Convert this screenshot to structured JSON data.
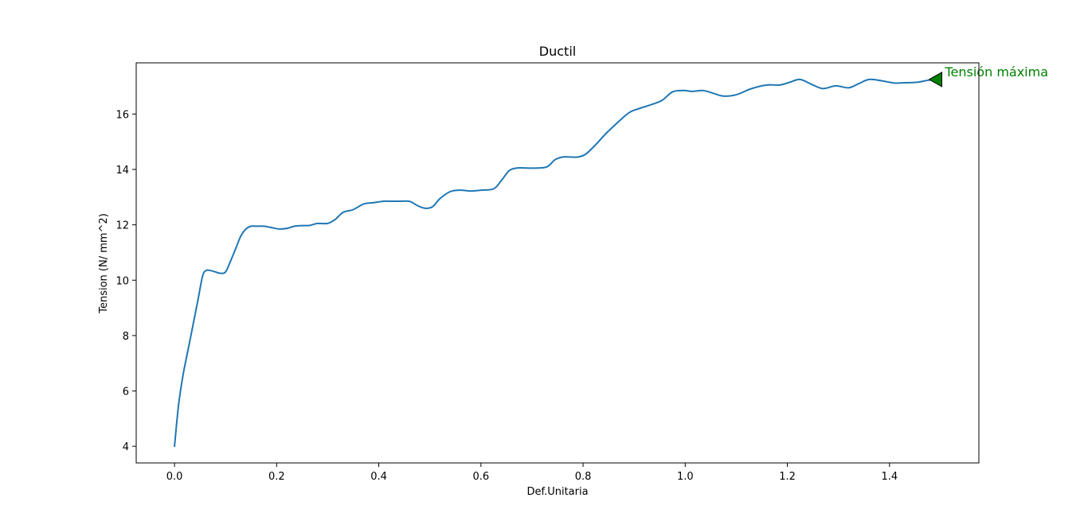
{
  "chart_data": {
    "type": "line",
    "title": "Ductil",
    "xlabel": "Def.Unitaria",
    "ylabel": "Tension (N/ mm^2)",
    "xlim": [
      -0.075,
      1.575
    ],
    "ylim": [
      3.4,
      17.85
    ],
    "xticks": [
      0.0,
      0.2,
      0.4,
      0.6,
      0.8,
      1.0,
      1.2,
      1.4
    ],
    "xtick_labels": [
      "0.0",
      "0.2",
      "0.4",
      "0.6",
      "0.8",
      "1.0",
      "1.2",
      "1.4"
    ],
    "yticks": [
      4,
      6,
      8,
      10,
      12,
      14,
      16
    ],
    "ytick_labels": [
      "4",
      "6",
      "8",
      "10",
      "12",
      "14",
      "16"
    ],
    "grid": false,
    "series": [
      {
        "color": "#1f77b4",
        "x": [
          0.0,
          0.008,
          0.017,
          0.03,
          0.045,
          0.055,
          0.062,
          0.07,
          0.08,
          0.09,
          0.1,
          0.11,
          0.12,
          0.13,
          0.14,
          0.15,
          0.16,
          0.175,
          0.19,
          0.205,
          0.22,
          0.235,
          0.25,
          0.265,
          0.28,
          0.3,
          0.315,
          0.33,
          0.35,
          0.37,
          0.39,
          0.41,
          0.425,
          0.44,
          0.46,
          0.475,
          0.49,
          0.505,
          0.52,
          0.54,
          0.56,
          0.58,
          0.6,
          0.625,
          0.64,
          0.655,
          0.67,
          0.69,
          0.71,
          0.73,
          0.745,
          0.76,
          0.775,
          0.79,
          0.805,
          0.825,
          0.845,
          0.865,
          0.89,
          0.91,
          0.935,
          0.955,
          0.975,
          0.995,
          1.015,
          1.035,
          1.055,
          1.075,
          1.1,
          1.13,
          1.16,
          1.185,
          1.205,
          1.225,
          1.25,
          1.27,
          1.295,
          1.32,
          1.34,
          1.36,
          1.385,
          1.41,
          1.43,
          1.455,
          1.475,
          1.49
        ],
        "y": [
          4.0,
          5.5,
          6.6,
          7.8,
          9.2,
          10.15,
          10.35,
          10.35,
          10.3,
          10.25,
          10.3,
          10.7,
          11.15,
          11.6,
          11.85,
          11.95,
          11.95,
          11.95,
          11.9,
          11.85,
          11.87,
          11.95,
          11.97,
          11.98,
          12.05,
          12.05,
          12.2,
          12.45,
          12.55,
          12.75,
          12.8,
          12.85,
          12.85,
          12.85,
          12.85,
          12.7,
          12.6,
          12.65,
          12.95,
          13.2,
          13.25,
          13.22,
          13.25,
          13.3,
          13.6,
          13.95,
          14.05,
          14.05,
          14.05,
          14.1,
          14.35,
          14.45,
          14.45,
          14.45,
          14.55,
          14.9,
          15.3,
          15.65,
          16.05,
          16.2,
          16.35,
          16.5,
          16.8,
          16.85,
          16.82,
          16.85,
          16.75,
          16.65,
          16.7,
          16.92,
          17.05,
          17.05,
          17.15,
          17.25,
          17.05,
          16.92,
          17.02,
          16.95,
          17.1,
          17.25,
          17.2,
          17.12,
          17.13,
          17.15,
          17.22,
          17.25
        ]
      }
    ],
    "annotations": [
      {
        "text": "Tensión máxima",
        "x": 1.49,
        "y": 17.25,
        "color": "#008000",
        "marker": "left-pointing triangle",
        "marker_color": "#008000"
      }
    ]
  }
}
